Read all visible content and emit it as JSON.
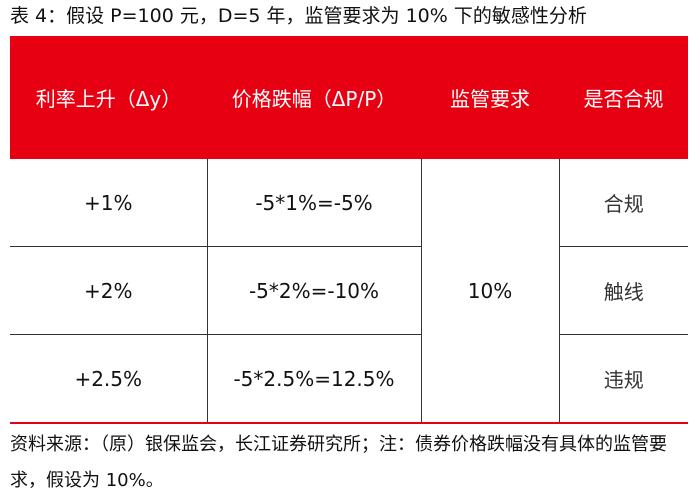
{
  "caption": "表 4：假设 P=100 元，D=5 年，监管要求为 10% 下的敏感性分析",
  "table": {
    "headers": [
      "利率上升（Δy）",
      "价格跌幅（ΔP/P）",
      "监管要求",
      "是否合规"
    ],
    "rows": [
      {
        "rate_rise": "+1%",
        "price_drop": "-5*1%=-5%",
        "compliance": "合规"
      },
      {
        "rate_rise": "+2%",
        "price_drop": "-5*2%=-10%",
        "compliance": "触线"
      },
      {
        "rate_rise": "+2.5%",
        "price_drop": "-5*2.5%=12.5%",
        "compliance": "违规"
      }
    ],
    "requirement": "10%"
  },
  "source_note": "资料来源：（原）银保监会，长江证券研究所；注：债券价格跌幅没有具体的监管要求，假设为 10%。",
  "colors": {
    "header_bg": "#e60012",
    "header_text": "#ffffff",
    "border": "#333333"
  }
}
